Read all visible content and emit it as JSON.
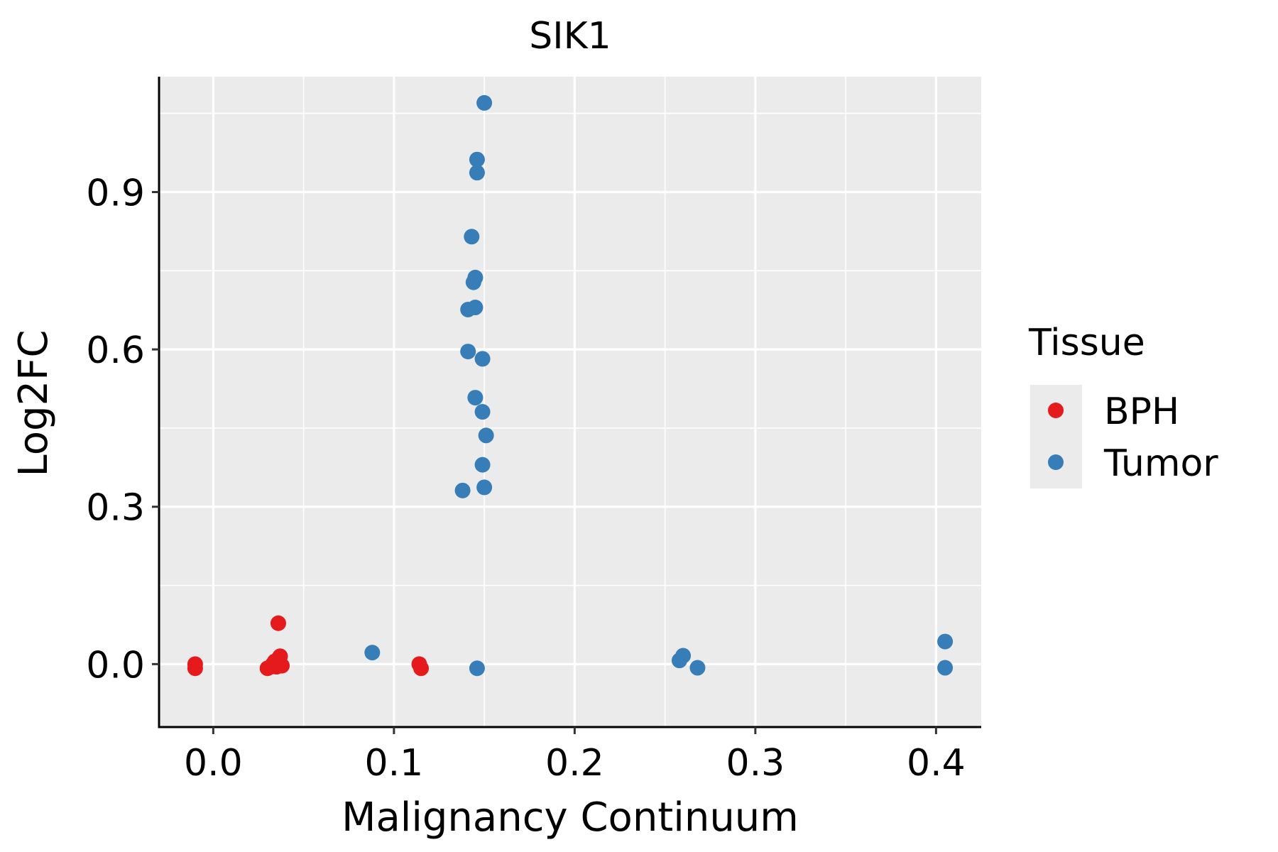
{
  "chart_data": {
    "type": "scatter",
    "title": "SIK1",
    "xlabel": "Malignancy Continuum",
    "ylabel": "Log2FC",
    "xlim": [
      -0.03,
      0.425
    ],
    "ylim": [
      -0.12,
      1.12
    ],
    "x_ticks": [
      0.0,
      0.1,
      0.2,
      0.3,
      0.4
    ],
    "x_tick_labels": [
      "0.0",
      "0.1",
      "0.2",
      "0.3",
      "0.4"
    ],
    "y_ticks": [
      0.0,
      0.3,
      0.6,
      0.9
    ],
    "y_tick_labels": [
      "0.0",
      "0.3",
      "0.6",
      "0.9"
    ],
    "grid": true,
    "legend": {
      "title": "Tissue",
      "position": "right"
    },
    "series": [
      {
        "name": "BPH",
        "color": "#e41a1c",
        "points": [
          {
            "x": -0.01,
            "y": 0.0
          },
          {
            "x": -0.01,
            "y": -0.008
          },
          {
            "x": 0.03,
            "y": -0.008
          },
          {
            "x": 0.032,
            "y": -0.005
          },
          {
            "x": 0.033,
            "y": 0.0
          },
          {
            "x": 0.034,
            "y": 0.005
          },
          {
            "x": 0.035,
            "y": -0.005
          },
          {
            "x": 0.036,
            "y": 0.01
          },
          {
            "x": 0.037,
            "y": 0.0
          },
          {
            "x": 0.037,
            "y": 0.015
          },
          {
            "x": 0.038,
            "y": -0.003
          },
          {
            "x": 0.036,
            "y": 0.078
          },
          {
            "x": 0.114,
            "y": 0.0
          },
          {
            "x": 0.115,
            "y": -0.008
          }
        ]
      },
      {
        "name": "Tumor",
        "color": "#377eb8",
        "points": [
          {
            "x": 0.15,
            "y": 1.07
          },
          {
            "x": 0.146,
            "y": 0.962
          },
          {
            "x": 0.146,
            "y": 0.937
          },
          {
            "x": 0.143,
            "y": 0.815
          },
          {
            "x": 0.145,
            "y": 0.737
          },
          {
            "x": 0.144,
            "y": 0.728
          },
          {
            "x": 0.145,
            "y": 0.68
          },
          {
            "x": 0.141,
            "y": 0.676
          },
          {
            "x": 0.141,
            "y": 0.596
          },
          {
            "x": 0.149,
            "y": 0.582
          },
          {
            "x": 0.145,
            "y": 0.508
          },
          {
            "x": 0.149,
            "y": 0.481
          },
          {
            "x": 0.151,
            "y": 0.436
          },
          {
            "x": 0.149,
            "y": 0.38
          },
          {
            "x": 0.15,
            "y": 0.337
          },
          {
            "x": 0.138,
            "y": 0.331
          },
          {
            "x": 0.088,
            "y": 0.022
          },
          {
            "x": 0.146,
            "y": -0.008
          },
          {
            "x": 0.258,
            "y": 0.007
          },
          {
            "x": 0.26,
            "y": 0.016
          },
          {
            "x": 0.268,
            "y": -0.007
          },
          {
            "x": 0.405,
            "y": 0.043
          },
          {
            "x": 0.405,
            "y": -0.007
          }
        ]
      }
    ]
  }
}
